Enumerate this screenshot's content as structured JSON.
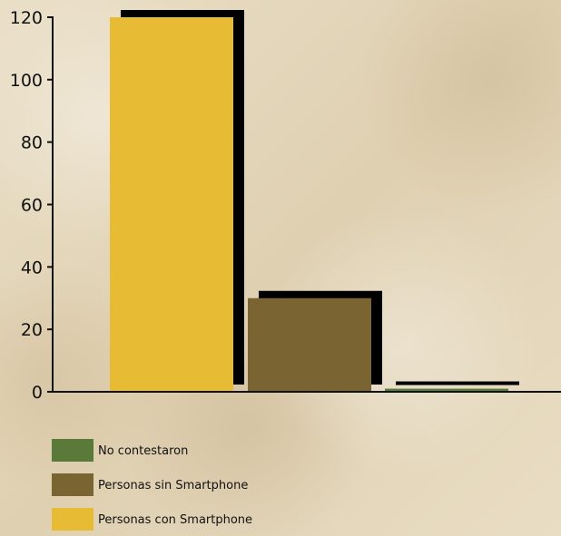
{
  "chart_data": {
    "type": "bar",
    "categories": [
      ""
    ],
    "series": [
      {
        "name": "Personas con Smartphone",
        "values": [
          120
        ],
        "color": "#e7bb33"
      },
      {
        "name": "Personas sin Smartphone",
        "values": [
          30
        ],
        "color": "#7a6431"
      },
      {
        "name": "No contestaron",
        "values": [
          1
        ],
        "color": "#5a7a3a"
      }
    ],
    "yticks": [
      0,
      20,
      40,
      60,
      80,
      100,
      120
    ],
    "ylim": [
      0,
      120
    ],
    "grid": false,
    "legend_placement": "bottom-left",
    "legend_order": [
      "No contestaron",
      "Personas sin Smartphone",
      "Personas con Smartphone"
    ],
    "shadow_color": "#000000"
  }
}
